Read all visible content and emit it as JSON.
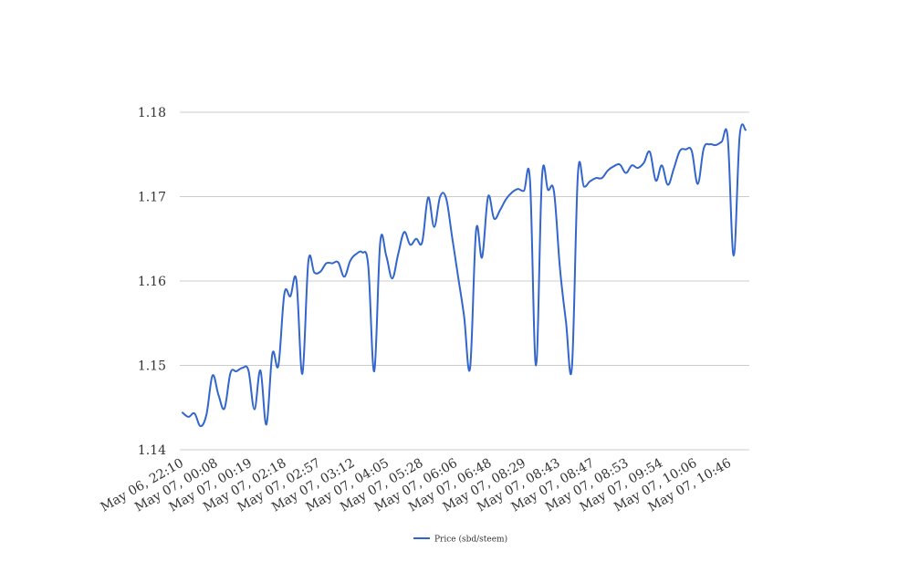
{
  "chart_data": {
    "type": "line",
    "title": "",
    "xlabel": "",
    "ylabel": "",
    "ylim": [
      1.14,
      1.18
    ],
    "y_ticks": [
      "1.14",
      "1.15",
      "1.16",
      "1.17",
      "1.18"
    ],
    "grid": true,
    "legend_position": "bottom",
    "x_tick_labels": [
      "May 06, 22:10",
      "May 07, 00:08",
      "May 07, 00:19",
      "May 07, 02:18",
      "May 07, 02:57",
      "May 07, 03:12",
      "May 07, 04:05",
      "May 07, 05:28",
      "May 07, 06:06",
      "May 07, 06:48",
      "May 07, 08:29",
      "May 07, 08:43",
      "May 07, 08:47",
      "May 07, 08:53",
      "May 07, 09:54",
      "May 07, 10:06",
      "May 07, 10:46"
    ],
    "series": [
      {
        "name": "Price (sbd/steem)",
        "color": "#3366cc",
        "values": [
          1.1444,
          1.1439,
          1.1443,
          1.1428,
          1.1442,
          1.1488,
          1.1465,
          1.1449,
          1.1491,
          1.1493,
          1.1497,
          1.1494,
          1.1448,
          1.1494,
          1.143,
          1.1514,
          1.15,
          1.1585,
          1.1582,
          1.1601,
          1.149,
          1.1623,
          1.161,
          1.1611,
          1.1621,
          1.1621,
          1.1622,
          1.1605,
          1.1624,
          1.1632,
          1.1634,
          1.1618,
          1.1493,
          1.1646,
          1.163,
          1.1603,
          1.1632,
          1.1658,
          1.1643,
          1.165,
          1.1646,
          1.1699,
          1.1664,
          1.17,
          1.1698,
          1.1652,
          1.1605,
          1.1558,
          1.1497,
          1.166,
          1.1628,
          1.17,
          1.1674,
          1.1684,
          1.1697,
          1.1705,
          1.1709,
          1.1707,
          1.1719,
          1.15,
          1.1723,
          1.1708,
          1.1706,
          1.1615,
          1.1552,
          1.1498,
          1.1727,
          1.1712,
          1.1718,
          1.1722,
          1.1722,
          1.1731,
          1.1736,
          1.1738,
          1.1728,
          1.1737,
          1.1734,
          1.174,
          1.1753,
          1.1719,
          1.1737,
          1.1714,
          1.1733,
          1.1754,
          1.1756,
          1.1754,
          1.1715,
          1.1757,
          1.1762,
          1.1761,
          1.1765,
          1.177,
          1.163,
          1.1772,
          1.1779
        ]
      }
    ]
  }
}
